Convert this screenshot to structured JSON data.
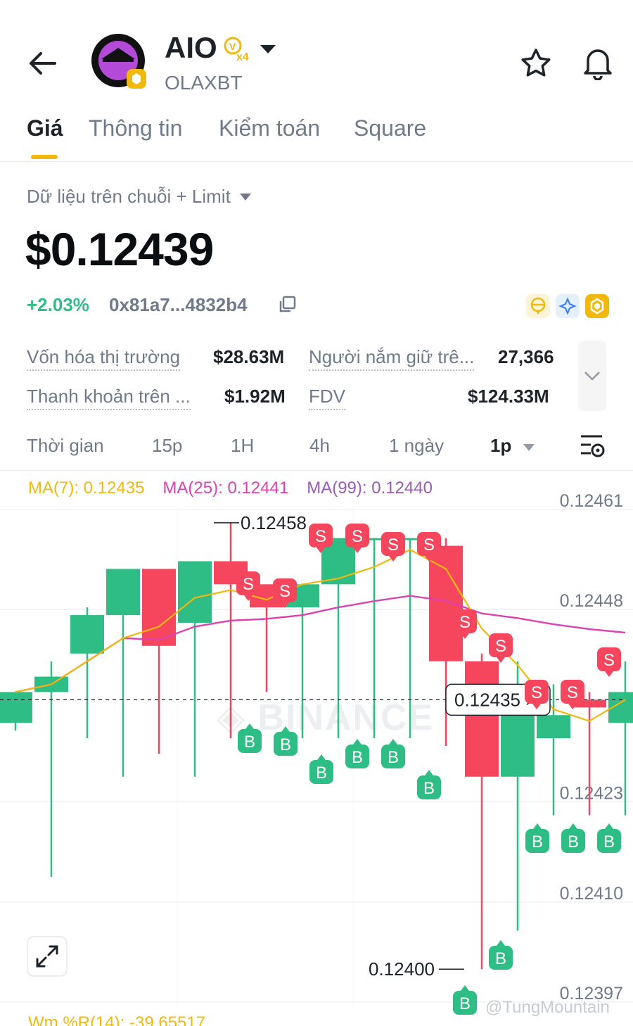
{
  "header": {
    "symbol": "AIO",
    "badge": "x4",
    "name": "OLAXBT"
  },
  "tabs": [
    {
      "label": "Giá"
    },
    {
      "label": "Thông tin"
    },
    {
      "label": "Kiểm toán"
    },
    {
      "label": "Square"
    }
  ],
  "market": {
    "source": "Dữ liệu trên chuỗi + Limit",
    "price": "$0.12439",
    "change": "+2.03%",
    "address": "0x81a7...4832b4"
  },
  "stats": {
    "market_cap_label": "Vốn hóa thị trường",
    "market_cap_value": "$28.63M",
    "holders_label": "Người nắm giữ trê...",
    "holders_value": "27,366",
    "liquidity_label": "Thanh khoản trên ...",
    "liquidity_value": "$1.92M",
    "fdv_label": "FDV",
    "fdv_value": "$124.33M"
  },
  "timeframes": {
    "label": "Thời gian",
    "items": [
      "15p",
      "1H",
      "4h",
      "1 ngày"
    ],
    "selected": "1p"
  },
  "indicators": {
    "ma7": "MA(7): 0.12435",
    "ma25": "MA(25): 0.12441",
    "ma99": "MA(99): 0.12440",
    "wmr": "Wm %R(14): -39.65517"
  },
  "colors": {
    "up": "#2ebd85",
    "down": "#f6465d",
    "accent": "#f0b90b",
    "ma7": "#f0b90b",
    "ma25": "#e040b0",
    "ma99": "#9b59b6"
  },
  "chart_data": {
    "type": "candlestick",
    "y_ticks": [
      "0.12461",
      "0.12448",
      "0.12423",
      "0.12410",
      "0.12397"
    ],
    "current_price_label": "0.12435",
    "high_label": "0.12458",
    "low_label": "0.12400",
    "candles": [
      {
        "o": 0.12432,
        "h": 0.12436,
        "l": 0.12431,
        "c": 0.12436,
        "dir": "up"
      },
      {
        "o": 0.12436,
        "h": 0.1244,
        "l": 0.12412,
        "c": 0.12438,
        "dir": "up"
      },
      {
        "o": 0.12441,
        "h": 0.12447,
        "l": 0.1243,
        "c": 0.12446,
        "dir": "up"
      },
      {
        "o": 0.12446,
        "h": 0.12452,
        "l": 0.12425,
        "c": 0.12452,
        "dir": "up"
      },
      {
        "o": 0.12452,
        "h": 0.12452,
        "l": 0.12428,
        "c": 0.12442,
        "dir": "down"
      },
      {
        "o": 0.12445,
        "h": 0.12453,
        "l": 0.12425,
        "c": 0.12453,
        "dir": "up"
      },
      {
        "o": 0.12453,
        "h": 0.12458,
        "l": 0.1243,
        "c": 0.1245,
        "dir": "down"
      },
      {
        "o": 0.1245,
        "h": 0.1245,
        "l": 0.12436,
        "c": 0.12447,
        "dir": "down"
      },
      {
        "o": 0.12447,
        "h": 0.1245,
        "l": 0.1243,
        "c": 0.1245,
        "dir": "up"
      },
      {
        "o": 0.1245,
        "h": 0.12456,
        "l": 0.1243,
        "c": 0.12456,
        "dir": "up"
      },
      {
        "o": 0.12456,
        "h": 0.12456,
        "l": 0.1243,
        "c": 0.12456,
        "dir": "up"
      },
      {
        "o": 0.12456,
        "h": 0.12456,
        "l": 0.1243,
        "c": 0.12456,
        "dir": "up"
      },
      {
        "o": 0.12455,
        "h": 0.12456,
        "l": 0.12429,
        "c": 0.1244,
        "dir": "down"
      },
      {
        "o": 0.1244,
        "h": 0.12441,
        "l": 0.124,
        "c": 0.12425,
        "dir": "down"
      },
      {
        "o": 0.12425,
        "h": 0.1244,
        "l": 0.12405,
        "c": 0.12437,
        "dir": "up"
      },
      {
        "o": 0.1243,
        "h": 0.12437,
        "l": 0.1242,
        "c": 0.12433,
        "dir": "up"
      },
      {
        "o": 0.12435,
        "h": 0.12436,
        "l": 0.1242,
        "c": 0.12434,
        "dir": "down"
      },
      {
        "o": 0.12432,
        "h": 0.1244,
        "l": 0.1242,
        "c": 0.12436,
        "dir": "up"
      }
    ]
  }
}
